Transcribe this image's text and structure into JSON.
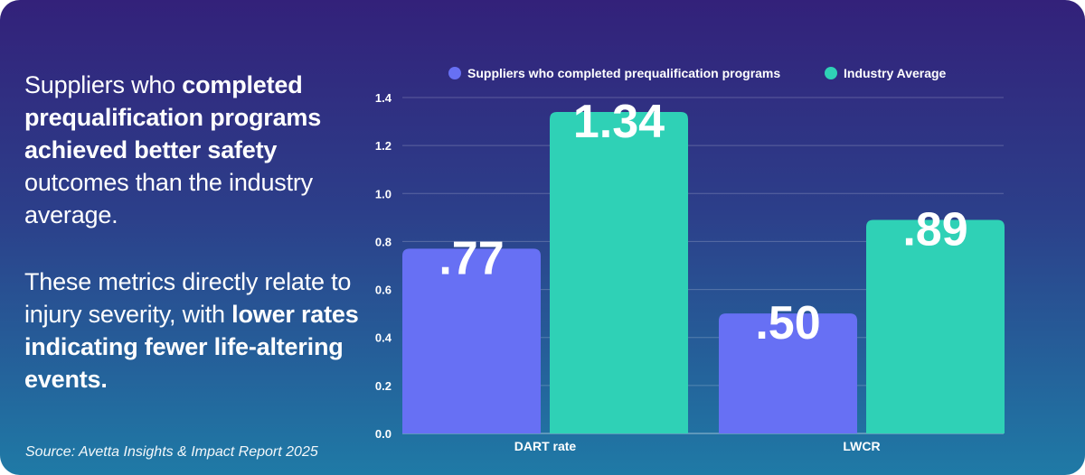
{
  "left_panel": {
    "para1": {
      "seg1": "Suppliers who ",
      "seg2": "completed prequalification programs achieved better safety",
      "seg3": " outcomes than the industry average."
    },
    "para2": {
      "seg1": "These metrics directly relate to injury severity, with ",
      "seg2": "lower rates indicating fewer life-altering events."
    }
  },
  "source": "Source: Avetta Insights & Impact Report 2025",
  "colors": {
    "series1": "#6770f4",
    "series2": "#2fd1b6"
  },
  "chart_data": {
    "type": "bar",
    "categories": [
      "DART rate",
      "LWCR"
    ],
    "series": [
      {
        "name": "Suppliers who completed prequalification programs",
        "values": [
          0.77,
          0.5
        ],
        "labels": [
          ".77",
          ".50"
        ]
      },
      {
        "name": "Industry Average",
        "values": [
          1.34,
          0.89
        ],
        "labels": [
          "1.34",
          ".89"
        ]
      }
    ],
    "ylim": [
      0,
      1.4
    ],
    "yticks": [
      "0.0",
      "0.2",
      "0.4",
      "0.6",
      "0.8",
      "1.0",
      "1.2",
      "1.4"
    ],
    "ytick_values": [
      0,
      0.2,
      0.4,
      0.6,
      0.8,
      1.0,
      1.2,
      1.4
    ],
    "grid": true,
    "legend": "top"
  }
}
